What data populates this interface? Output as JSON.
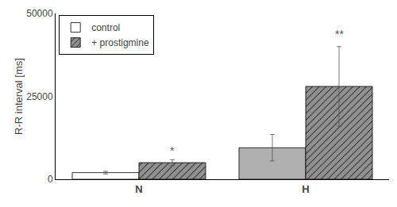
{
  "chart_data": {
    "type": "bar",
    "categories": [
      "N",
      "H"
    ],
    "series": [
      {
        "name": "control",
        "colors": [
          "#ffffff",
          "#b0b0b0"
        ],
        "values": [
          2000,
          9500
        ],
        "errors": [
          400,
          4000
        ]
      },
      {
        "name": "+ prostigmine",
        "color": "#909090",
        "values": [
          5000,
          28000
        ],
        "errors": [
          900,
          12000
        ]
      }
    ],
    "ylabel": "R-R interval [ms]",
    "ylim": [
      0,
      50000
    ],
    "yticks": [
      0,
      25000,
      50000
    ],
    "annotations": [
      {
        "text": "*",
        "category": "N",
        "series": "+ prostigmine",
        "y": 6200
      },
      {
        "text": "**",
        "category": "H",
        "series": "+ prostigmine",
        "y": 41500
      }
    ],
    "grid": false,
    "legend": "upper left"
  }
}
